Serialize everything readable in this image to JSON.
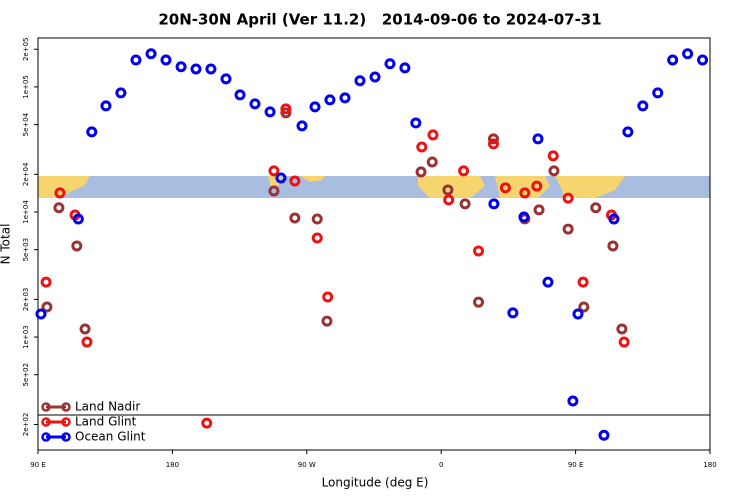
{
  "chart_data": {
    "type": "scatter",
    "title": "20N-30N April (Ver 11.2)   2014-09-06 to 2024-07-31",
    "x_label": "Longitude (deg E)",
    "y_label": "N Total",
    "xlim": [
      90,
      540
    ],
    "xticks": [
      {
        "value": 90,
        "label": "90 E"
      },
      {
        "value": 180,
        "label": "180"
      },
      {
        "value": 270,
        "label": "90 W"
      },
      {
        "value": 360,
        "label": "0"
      },
      {
        "value": 450,
        "label": "90 E"
      },
      {
        "value": 540,
        "label": "180"
      }
    ],
    "ylim": [
      125,
      246000
    ],
    "log_y": true,
    "yticks": [
      {
        "value": 200,
        "label": "2e+02"
      },
      {
        "value": 500,
        "label": "5e+02"
      },
      {
        "value": 1000,
        "label": "1e+03"
      },
      {
        "value": 2000,
        "label": "2e+03"
      },
      {
        "value": 5000,
        "label": "5e+03"
      },
      {
        "value": 10000,
        "label": "1e+04"
      },
      {
        "value": 20000,
        "label": "2e+04"
      },
      {
        "value": 50000,
        "label": "5e+04"
      },
      {
        "value": 100000,
        "label": "1e+05"
      },
      {
        "value": 200000,
        "label": "2e+05"
      }
    ],
    "legend_position": "lower-left",
    "series": [
      {
        "name": "Land Nadir",
        "color": "#993333",
        "x": [
          104,
          116,
          96,
          121.5,
          248,
          256,
          262,
          277,
          283.5,
          346.5,
          354,
          364.5,
          376,
          385,
          395,
          416,
          425.5,
          435.5,
          445,
          455.5,
          463.5,
          475,
          481
        ],
        "values": [
          10800,
          5350,
          1740,
          1160,
          14700,
          62000,
          8950,
          8790,
          1340,
          20900,
          25100,
          15000,
          11600,
          1900,
          38400,
          8800,
          10400,
          21300,
          7300,
          1740,
          10800,
          5350,
          1160
        ]
      },
      {
        "name": "Land Glint",
        "color": "#ee1111",
        "x": [
          104.7,
          95.4,
          114.8,
          122.8,
          203,
          248,
          256,
          262,
          277,
          284,
          347,
          354.5,
          365,
          375,
          385,
          395,
          403,
          416,
          424,
          435,
          445,
          455,
          474,
          482.5
        ],
        "values": [
          14200,
          2750,
          9460,
          912,
          205,
          21300,
          66700,
          17700,
          6190,
          2090,
          33100,
          41300,
          12500,
          21300,
          4880,
          35000,
          15600,
          14200,
          16100,
          28100,
          12900,
          2750,
          9460,
          912
        ]
      },
      {
        "name": "Ocean Glint",
        "color": "#0000ee",
        "x": [
          92,
          117,
          126,
          135.5,
          145.5,
          155.6,
          165.7,
          175.7,
          185.8,
          195.8,
          205.8,
          215.9,
          225.3,
          235.3,
          245.4,
          252.7,
          266.8,
          275.5,
          285.5,
          295.6,
          305.6,
          315.7,
          325.7,
          335.7,
          343,
          395.3,
          408,
          415.4,
          424.8,
          431.5,
          448.2,
          451.6,
          469,
          475.7,
          485,
          495,
          505,
          515,
          525,
          535
        ],
        "values": [
          1530,
          8790,
          43700,
          70500,
          89500,
          164000,
          184000,
          164000,
          145000,
          139000,
          139000,
          116000,
          86300,
          73100,
          63100,
          18700,
          48800,
          69200,
          78700,
          81700,
          112000,
          120000,
          153000,
          142000,
          51500,
          11600,
          1560,
          9120,
          38400,
          2750,
          308,
          1530,
          164,
          8790,
          43700,
          70500,
          89500,
          164000,
          184000,
          164000
        ]
      }
    ]
  }
}
